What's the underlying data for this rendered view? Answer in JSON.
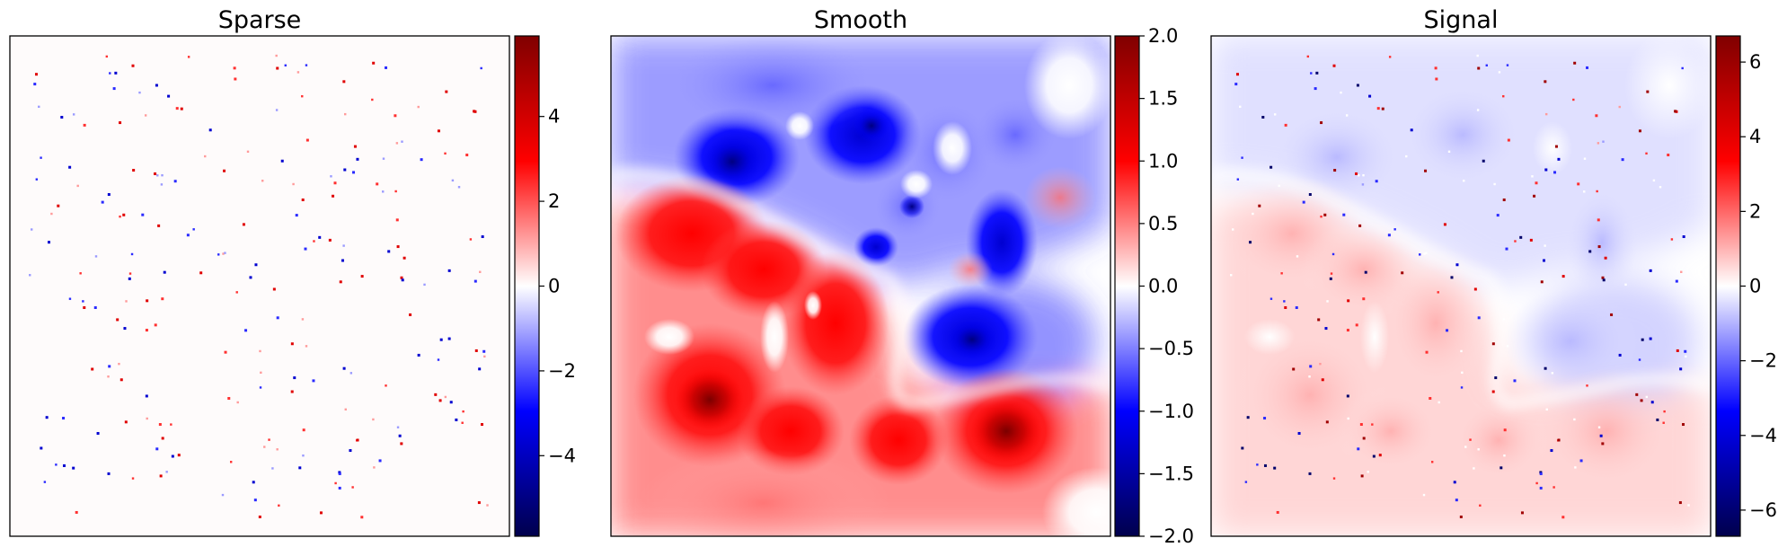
{
  "chart_data": [
    {
      "type": "heatmap",
      "title": "Sparse",
      "colormap": "seismic",
      "colorbar": {
        "vmin": -5.9,
        "vmax": 5.9,
        "ticks": [
          4,
          2,
          0,
          -2,
          -4
        ],
        "tick_labels": [
          "4",
          "2",
          "0",
          "−2",
          "−4"
        ]
      },
      "axes_ticks": false,
      "content": "sparse scattered point spikes on zero background"
    },
    {
      "type": "heatmap",
      "title": "Smooth",
      "colormap": "seismic",
      "colorbar": {
        "vmin": -2.0,
        "vmax": 2.0,
        "ticks": [
          2.0,
          1.5,
          1.0,
          0.5,
          0.0,
          -0.5,
          -1.0,
          -1.5,
          -2.0
        ],
        "tick_labels": [
          "2.0",
          "1.5",
          "1.0",
          "0.5",
          "0.0",
          "−0.5",
          "−1.0",
          "−1.5",
          "−2.0"
        ]
      },
      "axes_ticks": false,
      "content": "smooth field: negative (blue) upper region, positive (red) lower region"
    },
    {
      "type": "heatmap",
      "title": "Signal",
      "colormap": "seismic",
      "colorbar": {
        "vmin": -6.7,
        "vmax": 6.7,
        "ticks": [
          6,
          4,
          2,
          0,
          -2,
          -4,
          -6
        ],
        "tick_labels": [
          "6",
          "4",
          "2",
          "0",
          "−2",
          "−4",
          "−6"
        ]
      },
      "axes_ticks": false,
      "content": "sum of smooth field and sparse spikes"
    }
  ],
  "palette": {
    "dark_blue": "#00004c",
    "blue": "#0000ff",
    "white": "#ffffff",
    "red": "#ff0000",
    "dark_red": "#800000"
  }
}
